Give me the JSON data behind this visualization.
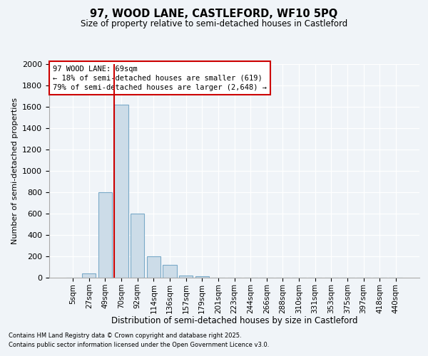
{
  "title1": "97, WOOD LANE, CASTLEFORD, WF10 5PQ",
  "title2": "Size of property relative to semi-detached houses in Castleford",
  "xlabel": "Distribution of semi-detached houses by size in Castleford",
  "ylabel": "Number of semi-detached properties",
  "categories": [
    "5sqm",
    "27sqm",
    "49sqm",
    "70sqm",
    "92sqm",
    "114sqm",
    "136sqm",
    "157sqm",
    "179sqm",
    "201sqm",
    "223sqm",
    "244sqm",
    "266sqm",
    "288sqm",
    "310sqm",
    "331sqm",
    "353sqm",
    "375sqm",
    "397sqm",
    "418sqm",
    "440sqm"
  ],
  "values": [
    0,
    40,
    800,
    1620,
    600,
    200,
    120,
    20,
    15,
    0,
    0,
    0,
    0,
    0,
    0,
    0,
    0,
    0,
    0,
    0,
    0
  ],
  "bar_color": "#ccdce8",
  "bar_edge_color": "#7aaac8",
  "red_line_index": 3,
  "annotation_text": "97 WOOD LANE: 69sqm\n← 18% of semi-detached houses are smaller (619)\n79% of semi-detached houses are larger (2,648) →",
  "ylim_max": 2000,
  "yticks": [
    0,
    200,
    400,
    600,
    800,
    1000,
    1200,
    1400,
    1600,
    1800,
    2000
  ],
  "footnote1": "Contains HM Land Registry data © Crown copyright and database right 2025.",
  "footnote2": "Contains public sector information licensed under the Open Government Licence v3.0.",
  "bg_color": "#f0f4f8",
  "grid_color": "#ffffff",
  "red_line_color": "#cc0000",
  "ann_box_edge_color": "#cc0000",
  "ann_box_face_color": "#ffffff"
}
